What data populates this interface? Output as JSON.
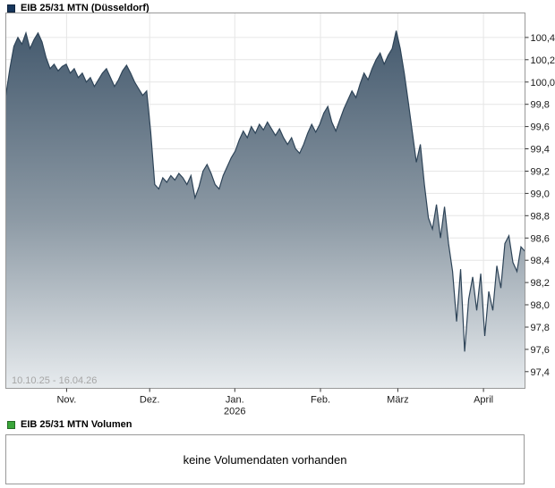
{
  "price_chart": {
    "legend": {
      "label": "EIB 25/31 MTN (Düsseldorf)",
      "swatch_color": "#17365c"
    },
    "date_range": "10.10.25 - 16.04.26"
  },
  "volume_chart": {
    "legend": {
      "label": "EIB 25/31 MTN Volumen",
      "swatch_color": "#3aa63a"
    },
    "message": "keine Volumendaten vorhanden"
  },
  "chart_data": {
    "type": "area",
    "title": "EIB 25/31 MTN (Düsseldorf)",
    "x_start": "10.10.25",
    "x_end": "16.04.26",
    "ylim": [
      97.25,
      100.62
    ],
    "grid": true,
    "yticks": [
      {
        "value": 100.4,
        "label": "100,4"
      },
      {
        "value": 100.2,
        "label": "100,2"
      },
      {
        "value": 100.0,
        "label": "100,0"
      },
      {
        "value": 99.8,
        "label": "99,8"
      },
      {
        "value": 99.6,
        "label": "99,6"
      },
      {
        "value": 99.4,
        "label": "99,4"
      },
      {
        "value": 99.2,
        "label": "99,2"
      },
      {
        "value": 99.0,
        "label": "99,0"
      },
      {
        "value": 98.8,
        "label": "98,8"
      },
      {
        "value": 98.6,
        "label": "98,6"
      },
      {
        "value": 98.4,
        "label": "98,4"
      },
      {
        "value": 98.2,
        "label": "98,2"
      },
      {
        "value": 98.0,
        "label": "98,0"
      },
      {
        "value": 97.8,
        "label": "97,8"
      },
      {
        "value": 97.6,
        "label": "97,6"
      },
      {
        "value": 97.4,
        "label": "97,4"
      }
    ],
    "xticks": [
      {
        "pos": 0.117,
        "label": "Nov."
      },
      {
        "pos": 0.277,
        "label": "Dez."
      },
      {
        "pos": 0.441,
        "label": "Jan.",
        "sublabel": "2026"
      },
      {
        "pos": 0.606,
        "label": "Feb."
      },
      {
        "pos": 0.755,
        "label": "März"
      },
      {
        "pos": 0.92,
        "label": "April"
      }
    ],
    "series": [
      {
        "name": "EIB 25/31 MTN",
        "values": [
          99.88,
          100.12,
          100.32,
          100.4,
          100.34,
          100.44,
          100.3,
          100.38,
          100.44,
          100.36,
          100.22,
          100.12,
          100.16,
          100.1,
          100.14,
          100.16,
          100.08,
          100.12,
          100.04,
          100.08,
          100.0,
          100.04,
          99.96,
          100.02,
          100.08,
          100.12,
          100.04,
          99.96,
          100.02,
          100.1,
          100.15,
          100.08,
          100.0,
          99.94,
          99.88,
          99.92,
          99.55,
          99.08,
          99.04,
          99.14,
          99.1,
          99.16,
          99.12,
          99.18,
          99.14,
          99.08,
          99.16,
          98.96,
          99.06,
          99.2,
          99.26,
          99.18,
          99.08,
          99.04,
          99.16,
          99.24,
          99.32,
          99.38,
          99.48,
          99.56,
          99.5,
          99.6,
          99.54,
          99.62,
          99.57,
          99.64,
          99.58,
          99.52,
          99.58,
          99.5,
          99.44,
          99.5,
          99.4,
          99.36,
          99.44,
          99.54,
          99.62,
          99.55,
          99.62,
          99.72,
          99.78,
          99.64,
          99.56,
          99.66,
          99.76,
          99.84,
          99.92,
          99.86,
          99.98,
          100.08,
          100.02,
          100.12,
          100.2,
          100.26,
          100.16,
          100.24,
          100.3,
          100.46,
          100.3,
          100.08,
          99.82,
          99.55,
          99.28,
          99.44,
          99.08,
          98.78,
          98.68,
          98.9,
          98.6,
          98.88,
          98.55,
          98.3,
          97.85,
          98.32,
          97.58,
          98.05,
          98.25,
          97.95,
          98.28,
          97.72,
          98.12,
          97.95,
          98.35,
          98.15,
          98.55,
          98.62,
          98.38,
          98.3,
          98.52,
          98.48
        ]
      }
    ],
    "style": {
      "line_color": "#2e4458",
      "area_top": "#3e5469",
      "area_mid": "#8d9aa5",
      "area_bottom": "#e7ebee",
      "grid_color": "#e6e6e6",
      "axis_color": "#999999",
      "tick_color": "#333333"
    }
  }
}
